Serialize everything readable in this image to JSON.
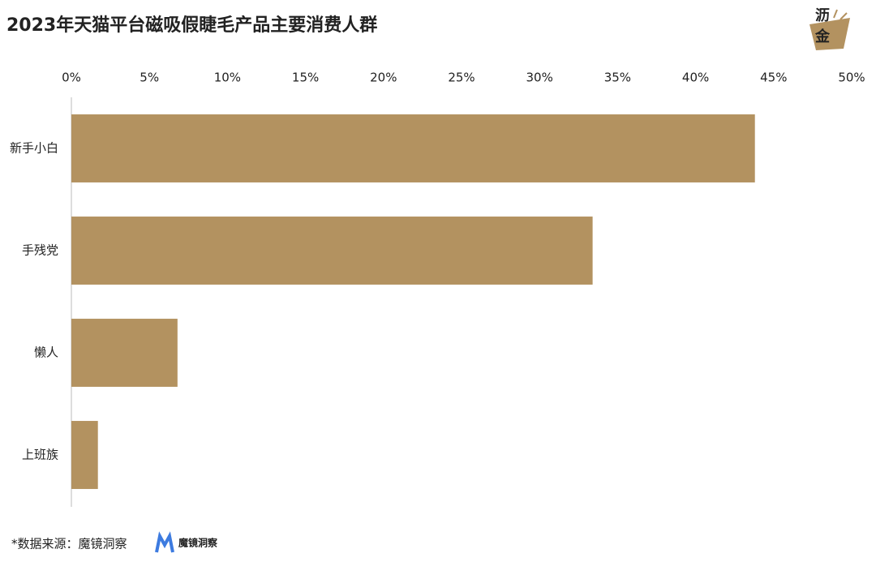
{
  "chart_data": {
    "type": "hbar",
    "title": "2023年天猫平台磁吸假睫毛产品主要消费人群",
    "categories": [
      "新手小白",
      "手残党",
      "懒人",
      "上班族"
    ],
    "values": [
      43.8,
      33.4,
      6.8,
      1.7
    ],
    "color": "#b39260",
    "xlim": [
      0,
      50
    ],
    "xticks": [
      {
        "value": 0,
        "label": "0%"
      },
      {
        "value": 5,
        "label": "5%"
      },
      {
        "value": 10,
        "label": "10%"
      },
      {
        "value": 15,
        "label": "15%"
      },
      {
        "value": 20,
        "label": "20%"
      },
      {
        "value": 25,
        "label": "25%"
      },
      {
        "value": 30,
        "label": "30%"
      },
      {
        "value": 35,
        "label": "35%"
      },
      {
        "value": 40,
        "label": "40%"
      },
      {
        "value": 45,
        "label": "45%"
      },
      {
        "value": 50,
        "label": "50%"
      }
    ],
    "source": "*数据来源：魔镜洞察",
    "source_logo": "魔镜洞察",
    "brand": [
      "沥",
      "金"
    ]
  }
}
